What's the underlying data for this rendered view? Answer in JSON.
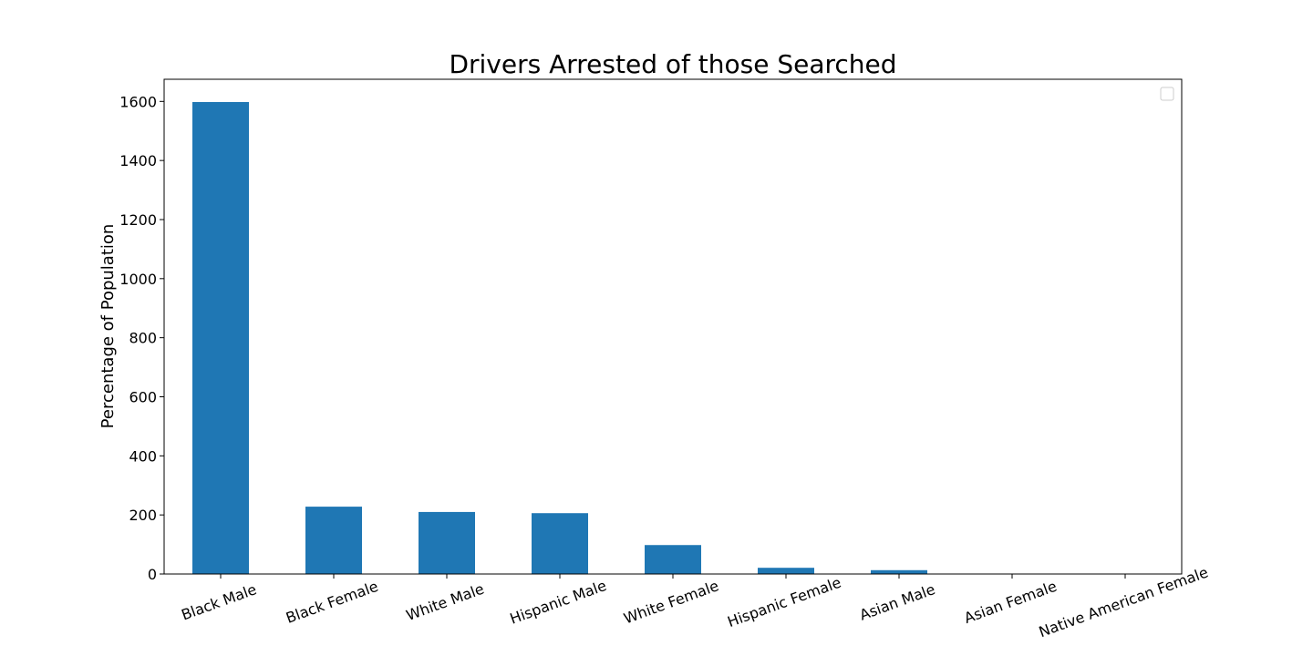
{
  "chart_data": {
    "type": "bar",
    "title": "Drivers Arrested of those Searched",
    "xlabel": "",
    "ylabel": "Percentage of Population",
    "categories": [
      "Black Male",
      "Black Female",
      "White Male",
      "Hispanic Male",
      "White Female",
      "Hispanic Female",
      "Asian Male",
      "Asian Female",
      "Native American Female"
    ],
    "values": [
      1598,
      228,
      210,
      206,
      98,
      21,
      13,
      1,
      1
    ],
    "ylim": [
      0,
      1675
    ],
    "yticks": [
      0,
      200,
      400,
      600,
      800,
      1000,
      1200,
      1400,
      1600
    ],
    "grid": false,
    "legend": "top-right (empty)",
    "colors": {
      "bar": "#1f77b4",
      "axis": "#000000"
    }
  }
}
